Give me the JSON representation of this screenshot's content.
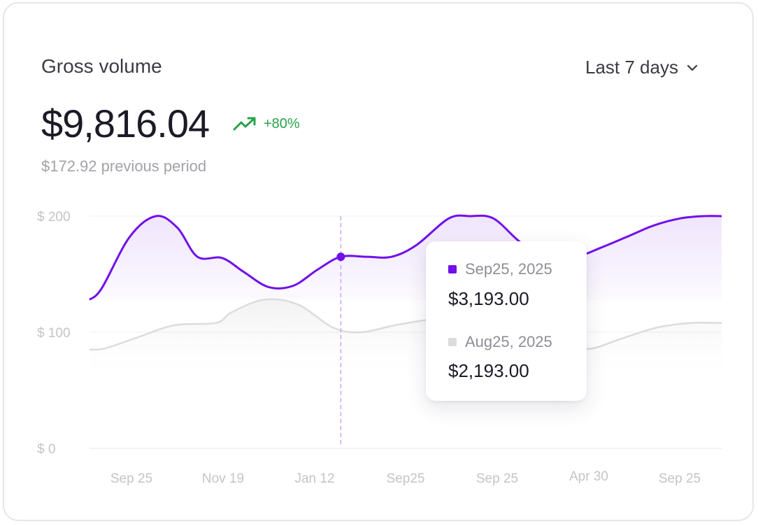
{
  "card": {
    "title": "Gross volume",
    "range_label": "Last 7 days",
    "amount": "$9,816.04",
    "change": "+80%",
    "previous": "$172.92 previous period"
  },
  "colors": {
    "primary": "#7110ea",
    "secondary": "#dededf",
    "positive": "#29a24a"
  },
  "chart_data": {
    "type": "area",
    "categories": [
      "Sep 25",
      "Nov 19",
      "Jan 12",
      "Sep25",
      "Sep 25",
      "Apr 30",
      "Sep 25"
    ],
    "y_tick_labels": [
      "$ 0",
      "$ 100",
      "$ 200"
    ],
    "ylim": [
      0,
      200
    ],
    "grid": true,
    "series": [
      {
        "values": [
          [
            0,
            128
          ],
          [
            8,
            138
          ],
          [
            26,
            182
          ],
          [
            43,
            200
          ],
          [
            57,
            190
          ],
          [
            70,
            165
          ],
          [
            86,
            164
          ],
          [
            100,
            152
          ],
          [
            116,
            139
          ],
          [
            132,
            140
          ],
          [
            148,
            154
          ],
          [
            163,
            165
          ],
          [
            180,
            165
          ],
          [
            196,
            165
          ],
          [
            212,
            175
          ],
          [
            233,
            198
          ],
          [
            247,
            200
          ],
          [
            262,
            198
          ],
          [
            280,
            177
          ],
          [
            298,
            164
          ],
          [
            316,
            165
          ],
          [
            332,
            173
          ],
          [
            350,
            183
          ],
          [
            366,
            192
          ],
          [
            383,
            198
          ],
          [
            398,
            200
          ],
          [
            410,
            200
          ]
        ]
      },
      {
        "values": [
          [
            0,
            85
          ],
          [
            10,
            86
          ],
          [
            30,
            95
          ],
          [
            55,
            106
          ],
          [
            82,
            108
          ],
          [
            92,
            117
          ],
          [
            113,
            128
          ],
          [
            135,
            124
          ],
          [
            158,
            104
          ],
          [
            176,
            100
          ],
          [
            198,
            106
          ],
          [
            222,
            111
          ],
          [
            247,
            111
          ],
          [
            270,
            104
          ],
          [
            296,
            90
          ],
          [
            310,
            87
          ],
          [
            326,
            86
          ],
          [
            344,
            94
          ],
          [
            368,
            104
          ],
          [
            390,
            108
          ],
          [
            410,
            108
          ]
        ]
      }
    ],
    "tooltip": {
      "items": [
        {
          "label": "Sep25, 2025",
          "value": "$3,193.00"
        },
        {
          "label": "Aug25, 2025",
          "value": "$2,193.00"
        }
      ]
    }
  }
}
